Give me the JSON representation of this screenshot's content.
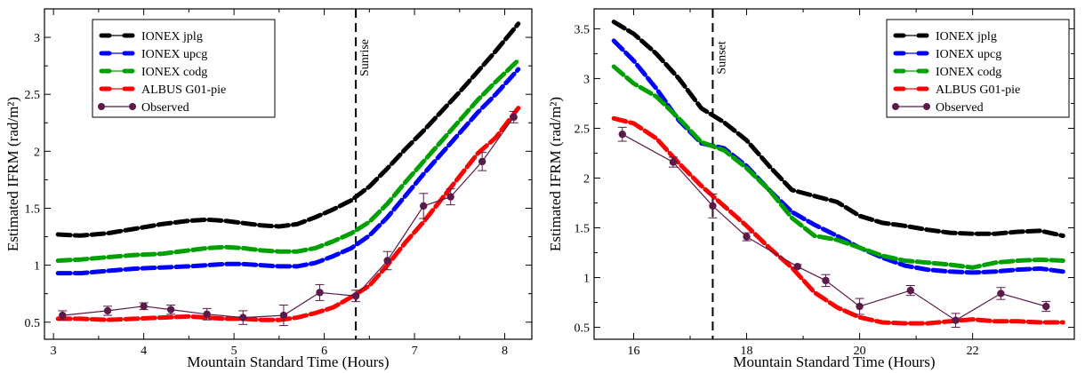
{
  "chart_data": [
    {
      "type": "line",
      "title": "",
      "xlabel": "Mountain Standard Time (Hours)",
      "ylabel": "Estimated IFRM (rad/m²)",
      "xlim": [
        2.9,
        8.3
      ],
      "ylim": [
        0.35,
        3.25
      ],
      "xticks": [
        3,
        4,
        5,
        6,
        7,
        8
      ],
      "yticks": [
        0.5,
        1,
        1.5,
        2,
        2.5,
        3
      ],
      "ytick_labels": [
        "0.5",
        "1",
        "1.5",
        "2",
        "2.5",
        "3"
      ],
      "legend_position": "top-left",
      "annotation": {
        "label": "Sunrise",
        "x": 6.35,
        "style": "dashed-vertical"
      },
      "series": [
        {
          "name": "IONEX jplg",
          "color": "#000000",
          "x": [
            3.05,
            3.3,
            3.6,
            3.9,
            4.2,
            4.5,
            4.7,
            4.9,
            5.1,
            5.3,
            5.5,
            5.7,
            5.9,
            6.1,
            6.3,
            6.5,
            6.7,
            6.9,
            7.1,
            7.3,
            7.5,
            7.7,
            7.9,
            8.15
          ],
          "y": [
            1.27,
            1.26,
            1.28,
            1.32,
            1.36,
            1.39,
            1.4,
            1.39,
            1.37,
            1.35,
            1.34,
            1.36,
            1.42,
            1.49,
            1.57,
            1.69,
            1.85,
            2.02,
            2.18,
            2.35,
            2.52,
            2.7,
            2.88,
            3.12
          ]
        },
        {
          "name": "IONEX upcg",
          "color": "#0000ff",
          "x": [
            3.05,
            3.3,
            3.6,
            3.9,
            4.2,
            4.5,
            4.7,
            4.9,
            5.1,
            5.3,
            5.5,
            5.7,
            5.9,
            6.1,
            6.3,
            6.5,
            6.7,
            6.9,
            7.1,
            7.3,
            7.5,
            7.7,
            7.9,
            8.15
          ],
          "y": [
            0.93,
            0.93,
            0.95,
            0.97,
            0.98,
            0.99,
            1.0,
            1.01,
            1.01,
            1.0,
            0.99,
            0.99,
            1.02,
            1.08,
            1.15,
            1.26,
            1.42,
            1.61,
            1.8,
            1.98,
            2.16,
            2.34,
            2.5,
            2.72
          ]
        },
        {
          "name": "IONEX codg",
          "color": "#00a000",
          "x": [
            3.05,
            3.3,
            3.6,
            3.9,
            4.2,
            4.5,
            4.7,
            4.9,
            5.1,
            5.3,
            5.5,
            5.7,
            5.9,
            6.1,
            6.3,
            6.5,
            6.7,
            6.9,
            7.1,
            7.3,
            7.5,
            7.7,
            7.9,
            8.15
          ],
          "y": [
            1.04,
            1.05,
            1.07,
            1.09,
            1.1,
            1.13,
            1.15,
            1.16,
            1.15,
            1.13,
            1.12,
            1.12,
            1.15,
            1.21,
            1.28,
            1.38,
            1.54,
            1.73,
            1.91,
            2.09,
            2.27,
            2.45,
            2.61,
            2.8
          ]
        },
        {
          "name": "ALBUS G01-pie",
          "color": "#ff0000",
          "x": [
            3.05,
            3.3,
            3.6,
            3.9,
            4.2,
            4.5,
            4.7,
            4.9,
            5.1,
            5.3,
            5.5,
            5.7,
            5.9,
            6.1,
            6.3,
            6.5,
            6.7,
            6.9,
            7.1,
            7.3,
            7.5,
            7.7,
            7.9,
            8.15
          ],
          "y": [
            0.53,
            0.53,
            0.52,
            0.53,
            0.54,
            0.55,
            0.54,
            0.53,
            0.53,
            0.52,
            0.52,
            0.54,
            0.58,
            0.63,
            0.72,
            0.82,
            1.0,
            1.2,
            1.38,
            1.58,
            1.78,
            1.98,
            2.12,
            2.38
          ]
        }
      ],
      "observed": {
        "name": "Observed",
        "color": "#5a1a4a",
        "x": [
          3.1,
          3.6,
          4.0,
          4.3,
          4.7,
          5.1,
          5.55,
          5.95,
          6.35,
          6.7,
          7.1,
          7.4,
          7.75,
          8.1
        ],
        "y": [
          0.56,
          0.6,
          0.64,
          0.61,
          0.57,
          0.54,
          0.56,
          0.76,
          0.73,
          1.04,
          1.52,
          1.6,
          1.91,
          2.3
        ],
        "err": [
          0.04,
          0.04,
          0.03,
          0.04,
          0.05,
          0.06,
          0.09,
          0.07,
          0.05,
          0.08,
          0.11,
          0.07,
          0.08,
          0.05
        ]
      }
    },
    {
      "type": "line",
      "title": "",
      "xlabel": "Mountain Standard Time (Hours)",
      "ylabel": "Estimated IFRM (rad/m²)",
      "xlim": [
        15.3,
        23.8
      ],
      "ylim": [
        0.38,
        3.7
      ],
      "xticks": [
        16,
        18,
        20,
        22
      ],
      "yticks": [
        0.5,
        1,
        1.5,
        2,
        2.5,
        3,
        3.5
      ],
      "ytick_labels": [
        "0.5",
        "1",
        "1.5",
        "2",
        "2.5",
        "3",
        "3.5"
      ],
      "legend_position": "top-right",
      "annotation": {
        "label": "Sunset",
        "x": 17.4,
        "style": "dashed-vertical"
      },
      "series": [
        {
          "name": "IONEX jplg",
          "color": "#000000",
          "x": [
            15.65,
            16.0,
            16.4,
            16.8,
            17.2,
            17.6,
            18.0,
            18.4,
            18.8,
            19.2,
            19.6,
            20.0,
            20.4,
            20.8,
            21.2,
            21.6,
            22.0,
            22.4,
            22.8,
            23.2,
            23.6
          ],
          "y": [
            3.57,
            3.45,
            3.25,
            3.0,
            2.7,
            2.56,
            2.38,
            2.12,
            1.88,
            1.82,
            1.76,
            1.62,
            1.55,
            1.52,
            1.48,
            1.45,
            1.44,
            1.44,
            1.46,
            1.47,
            1.42
          ]
        },
        {
          "name": "IONEX upcg",
          "color": "#0000ff",
          "x": [
            15.65,
            16.0,
            16.4,
            16.8,
            17.2,
            17.6,
            18.0,
            18.4,
            18.8,
            19.2,
            19.6,
            20.0,
            20.4,
            20.8,
            21.2,
            21.6,
            22.0,
            22.4,
            22.8,
            23.2,
            23.6
          ],
          "y": [
            3.38,
            3.18,
            2.9,
            2.58,
            2.35,
            2.3,
            2.12,
            1.88,
            1.66,
            1.53,
            1.42,
            1.3,
            1.2,
            1.12,
            1.08,
            1.06,
            1.05,
            1.06,
            1.08,
            1.09,
            1.06
          ]
        },
        {
          "name": "IONEX codg",
          "color": "#00a000",
          "x": [
            15.65,
            16.0,
            16.4,
            16.8,
            17.2,
            17.6,
            18.0,
            18.4,
            18.8,
            19.2,
            19.6,
            20.0,
            20.4,
            20.8,
            21.2,
            21.6,
            22.0,
            22.4,
            22.8,
            23.2,
            23.6
          ],
          "y": [
            3.12,
            2.95,
            2.82,
            2.6,
            2.36,
            2.28,
            2.1,
            1.88,
            1.6,
            1.42,
            1.38,
            1.3,
            1.22,
            1.17,
            1.15,
            1.13,
            1.1,
            1.15,
            1.17,
            1.18,
            1.17
          ]
        },
        {
          "name": "ALBUS G01-pie",
          "color": "#ff0000",
          "x": [
            15.65,
            16.0,
            16.4,
            16.8,
            17.2,
            17.6,
            18.0,
            18.4,
            18.8,
            19.2,
            19.6,
            20.0,
            20.4,
            20.8,
            21.2,
            21.6,
            22.0,
            22.4,
            22.8,
            23.2,
            23.6
          ],
          "y": [
            2.6,
            2.55,
            2.4,
            2.15,
            1.92,
            1.72,
            1.52,
            1.3,
            1.1,
            0.85,
            0.7,
            0.6,
            0.55,
            0.54,
            0.54,
            0.56,
            0.58,
            0.56,
            0.56,
            0.55,
            0.55
          ]
        }
      ],
      "observed": {
        "name": "Observed",
        "color": "#5a1a4a",
        "x": [
          15.8,
          16.7,
          17.4,
          18.0,
          18.9,
          19.4,
          20.0,
          20.9,
          21.7,
          22.5,
          23.3
        ],
        "y": [
          2.44,
          2.16,
          1.72,
          1.41,
          1.11,
          0.97,
          0.71,
          0.87,
          0.57,
          0.84,
          0.71
        ],
        "err": [
          0.07,
          0.05,
          0.12,
          0.04,
          0.02,
          0.06,
          0.08,
          0.05,
          0.07,
          0.06,
          0.05
        ]
      }
    }
  ]
}
